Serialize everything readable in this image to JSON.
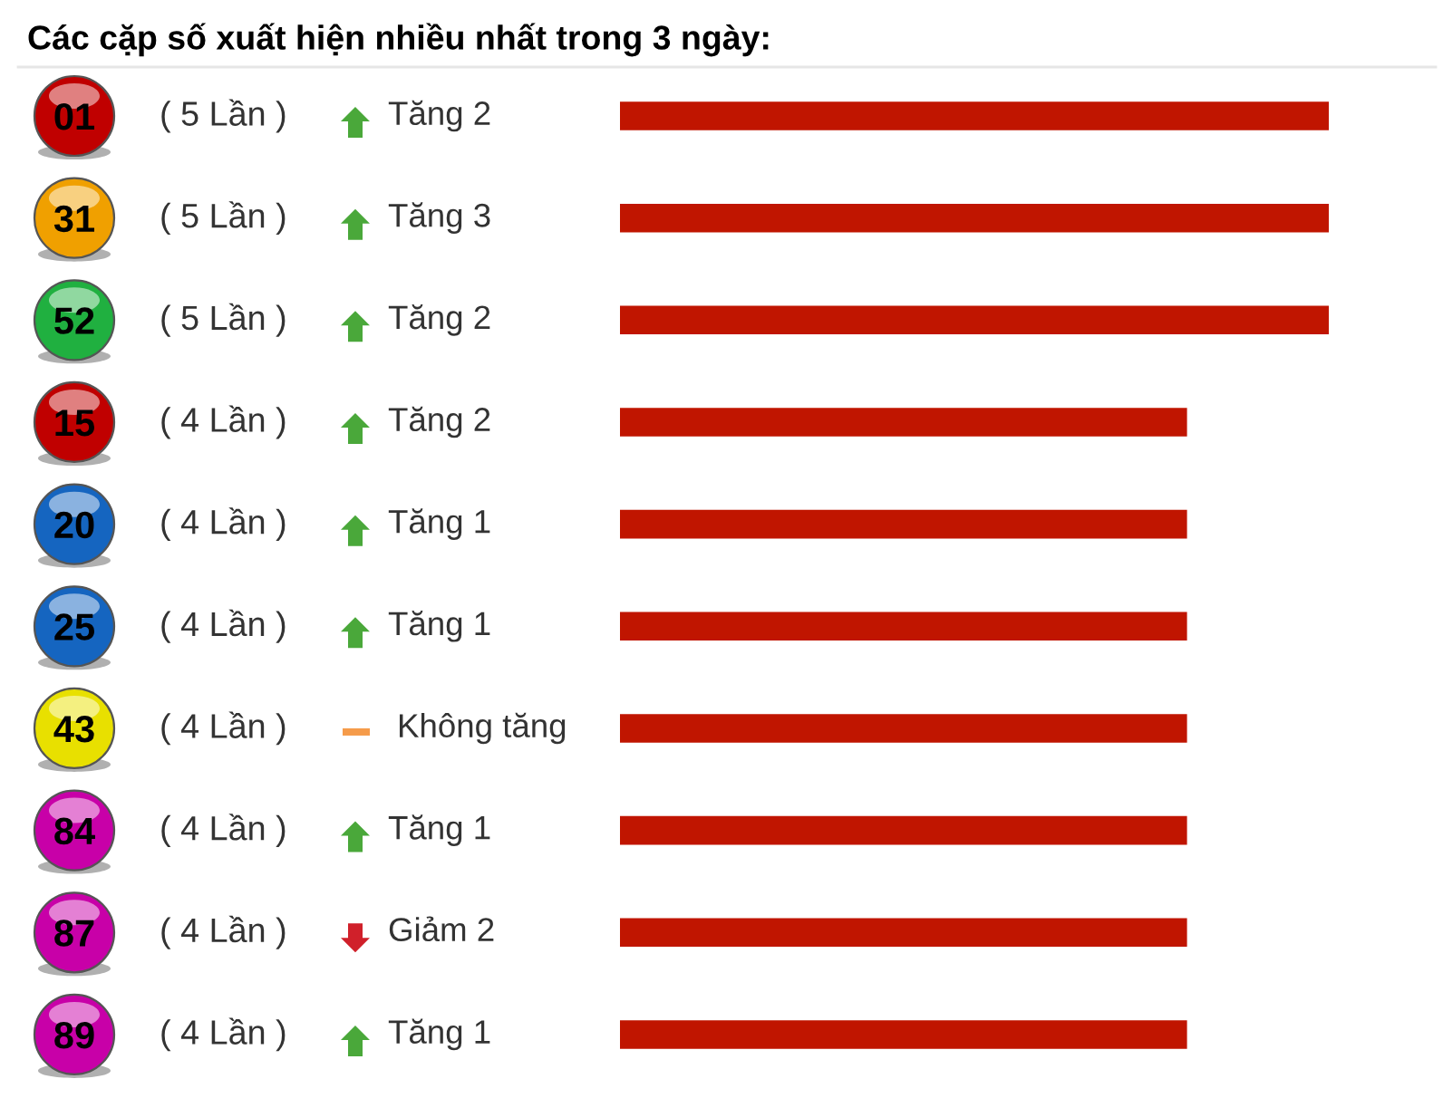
{
  "chart_data": {
    "type": "bar",
    "orientation": "horizontal",
    "title": "Các cặp số xuất hiện nhiều nhất trong 3 ngày:",
    "categories": [
      "01",
      "31",
      "52",
      "15",
      "20",
      "25",
      "43",
      "84",
      "87",
      "89"
    ],
    "values": [
      5,
      5,
      5,
      4,
      4,
      4,
      4,
      4,
      4,
      4
    ],
    "value_labels": [
      "( 5 Lần )",
      "( 5 Lần )",
      "( 5 Lần )",
      "( 4 Lần )",
      "( 4 Lần )",
      "( 4 Lần )",
      "( 4 Lần )",
      "( 4 Lần )",
      "( 4 Lần )",
      "( 4 Lần )"
    ],
    "color": "#c01500",
    "annotations": [
      "Tăng 2",
      "Tăng 3",
      "Tăng 2",
      "Tăng 2",
      "Tăng 1",
      "Tăng 1",
      "Không tăng",
      "Tăng 1",
      "Giảm 2",
      "Tăng 1"
    ],
    "tick_labels": "y"
  }
}
